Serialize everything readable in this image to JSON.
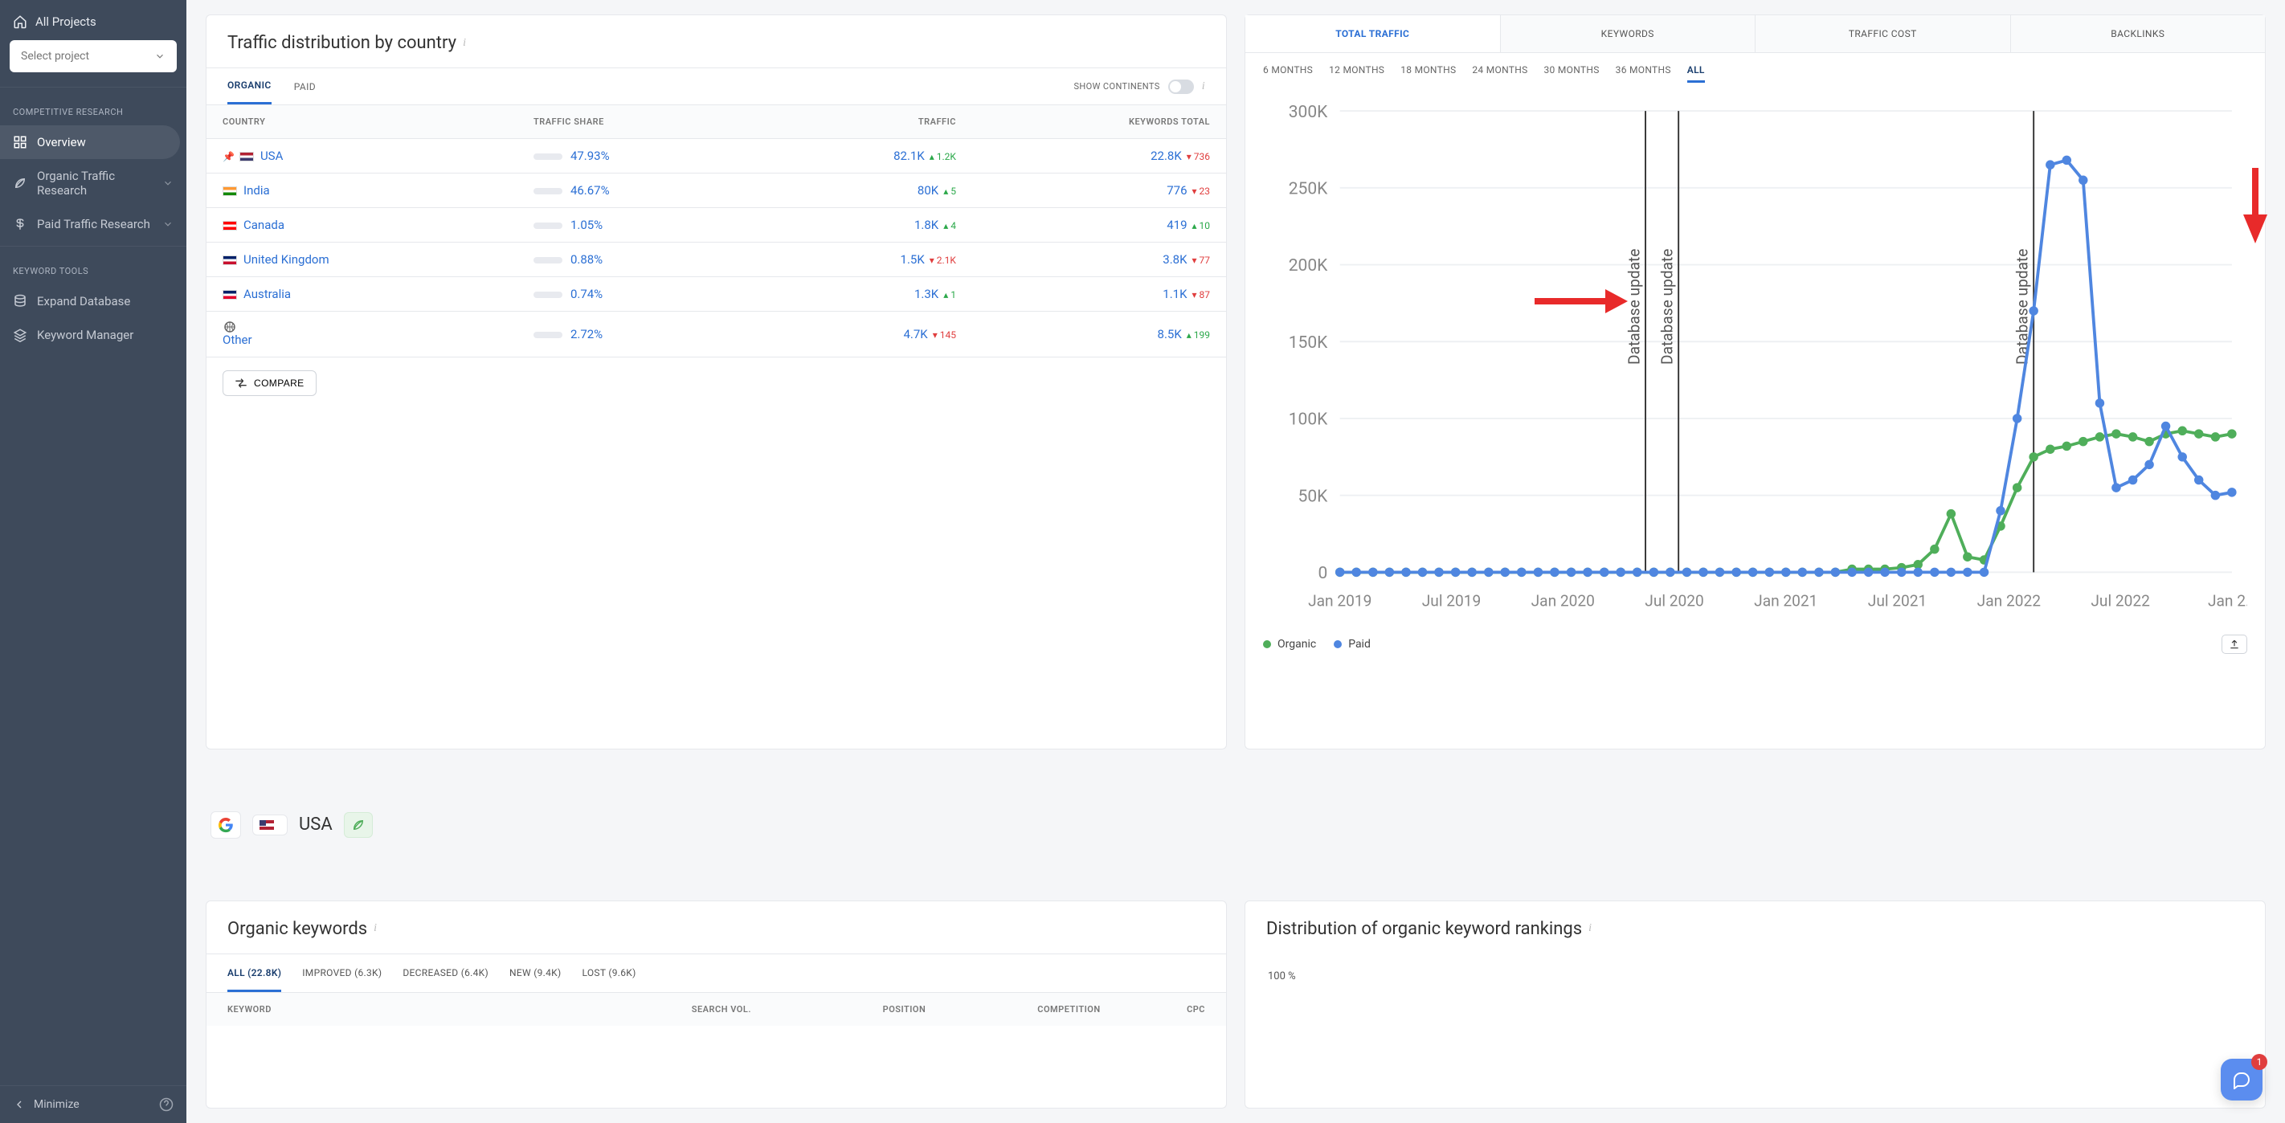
{
  "sidebar": {
    "all_projects": "All Projects",
    "select_project": "Select project",
    "section1": "COMPETITIVE RESEARCH",
    "items1": [
      {
        "label": "Overview",
        "icon": "grid"
      },
      {
        "label": "Organic Traffic Research",
        "icon": "leaf",
        "expandable": true
      },
      {
        "label": "Paid Traffic Research",
        "icon": "dollar",
        "expandable": true
      }
    ],
    "section2": "KEYWORD TOOLS",
    "items2": [
      {
        "label": "Expand Database",
        "icon": "db"
      },
      {
        "label": "Keyword Manager",
        "icon": "stack"
      }
    ],
    "minimize": "Minimize"
  },
  "traffic_dist": {
    "title": "Traffic distribution by country",
    "tabs": [
      "ORGANIC",
      "PAID"
    ],
    "show_continents": "SHOW CONTINENTS",
    "headers": [
      "COUNTRY",
      "TRAFFIC SHARE",
      "TRAFFIC",
      "KEYWORDS TOTAL"
    ],
    "rows": [
      {
        "pinned": true,
        "flag_colors": [
          "#b22234",
          "#ffffff",
          "#3c3b6e"
        ],
        "name": "USA",
        "share_pct": "47.93%",
        "share_fill": 48,
        "traffic": "82.1K",
        "traffic_delta": "1.2K",
        "traffic_dir": "up",
        "kw": "22.8K",
        "kw_delta": "736",
        "kw_dir": "down"
      },
      {
        "flag_colors": [
          "#ff9933",
          "#ffffff",
          "#138808"
        ],
        "name": "India",
        "share_pct": "46.67%",
        "share_fill": 47,
        "traffic": "80K",
        "traffic_delta": "5",
        "traffic_dir": "up",
        "kw": "776",
        "kw_delta": "23",
        "kw_dir": "down"
      },
      {
        "flag_colors": [
          "#ff0000",
          "#ffffff",
          "#ff0000"
        ],
        "name": "Canada",
        "share_pct": "1.05%",
        "share_fill": 2,
        "traffic": "1.8K",
        "traffic_delta": "4",
        "traffic_dir": "up",
        "kw": "419",
        "kw_delta": "10",
        "kw_dir": "up"
      },
      {
        "flag_colors": [
          "#012169",
          "#ffffff",
          "#c8102e"
        ],
        "name": "United Kingdom",
        "share_pct": "0.88%",
        "share_fill": 2,
        "traffic": "1.5K",
        "traffic_delta": "2.1K",
        "traffic_dir": "down",
        "kw": "3.8K",
        "kw_delta": "77",
        "kw_dir": "down"
      },
      {
        "flag_colors": [
          "#012169",
          "#ffffff",
          "#e4002b"
        ],
        "name": "Australia",
        "share_pct": "0.74%",
        "share_fill": 2,
        "traffic": "1.3K",
        "traffic_delta": "1",
        "traffic_dir": "up",
        "kw": "1.1K",
        "kw_delta": "87",
        "kw_dir": "down"
      },
      {
        "other": true,
        "name": "Other",
        "share_pct": "2.72%",
        "share_fill": 3,
        "traffic": "4.7K",
        "traffic_delta": "145",
        "traffic_dir": "down",
        "kw": "8.5K",
        "kw_delta": "199",
        "kw_dir": "up"
      }
    ],
    "compare": "COMPARE"
  },
  "chart": {
    "big_tabs": [
      "TOTAL TRAFFIC",
      "KEYWORDS",
      "TRAFFIC COST",
      "BACKLINKS"
    ],
    "active_big_tab": 0,
    "range_tabs": [
      "6 MONTHS",
      "12 MONTHS",
      "18 MONTHS",
      "24 MONTHS",
      "30 MONTHS",
      "36 MONTHS",
      "ALL"
    ],
    "active_range": 6,
    "y_ticks": [
      "0",
      "50K",
      "100K",
      "150K",
      "200K",
      "250K",
      "300K"
    ],
    "ylim": [
      0,
      300
    ],
    "x_labels": [
      "Jan 2019",
      "Jul 2019",
      "Jan 2020",
      "Jul 2020",
      "Jan 2021",
      "Jul 2021",
      "Jan 2022",
      "Jul 2022",
      "Jan 2…"
    ],
    "db_updates": [
      18.5,
      20.5,
      42.0
    ],
    "db_update_label": "Database update",
    "series": {
      "organic": {
        "color": "#4fae5a",
        "values": [
          0,
          0,
          0,
          0,
          0,
          0,
          0,
          0,
          0,
          0,
          0,
          0,
          0,
          0,
          0,
          0,
          0,
          0,
          0,
          0,
          0,
          0,
          0,
          0,
          0,
          0,
          0,
          0,
          0,
          0,
          0,
          2,
          2,
          2,
          3,
          5,
          15,
          38,
          10,
          8,
          30,
          55,
          75,
          80,
          82,
          85,
          88,
          90,
          88,
          85,
          90,
          92,
          90,
          88,
          90
        ]
      },
      "paid": {
        "color": "#4f86e0",
        "values": [
          0,
          0,
          0,
          0,
          0,
          0,
          0,
          0,
          0,
          0,
          0,
          0,
          0,
          0,
          0,
          0,
          0,
          0,
          0,
          0,
          0,
          0,
          0,
          0,
          0,
          0,
          0,
          0,
          0,
          0,
          0,
          0,
          0,
          0,
          0,
          0,
          0,
          0,
          0,
          0,
          40,
          100,
          170,
          265,
          268,
          255,
          110,
          55,
          60,
          70,
          95,
          75,
          60,
          50,
          52
        ]
      }
    },
    "legend": [
      "Organic",
      "Paid"
    ],
    "background": "#ffffff",
    "grid_color": "#eef0f3"
  },
  "usa_row": {
    "label": "USA"
  },
  "kw_card": {
    "title": "Organic keywords",
    "tabs": [
      "ALL (22.8K)",
      "IMPROVED (6.3K)",
      "DECREASED (6.4K)",
      "NEW (9.4K)",
      "LOST (9.6K)"
    ],
    "headers": [
      "KEYWORD",
      "SEARCH VOL.",
      "POSITION",
      "COMPETITION",
      "CPC"
    ]
  },
  "dist_card": {
    "title": "Distribution of organic keyword rankings",
    "pct_label": "100 %"
  },
  "chat": {
    "badge": "1"
  }
}
